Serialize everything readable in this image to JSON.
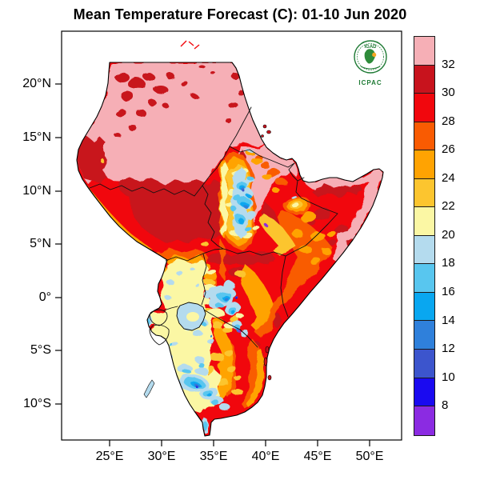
{
  "title": "Mean Temperature Forecast (C): 01-10 Jun 2020",
  "logo": {
    "org": "IGAD",
    "caption": "ICPAC"
  },
  "axes": {
    "lat": [
      "20°N",
      "15°N",
      "10°N",
      "5°N",
      "0°",
      "5°S",
      "10°S"
    ],
    "lon": [
      "25°E",
      "30°E",
      "35°E",
      "40°E",
      "45°E",
      "50°E"
    ]
  },
  "legend": {
    "labels": [
      "32",
      "30",
      "28",
      "26",
      "24",
      "22",
      "20",
      "18",
      "16",
      "14",
      "12",
      "10",
      "8"
    ],
    "colors": [
      "#F6AFB6",
      "#C8131D",
      "#F1070D",
      "#F95B02",
      "#FFA302",
      "#FCC52F",
      "#FBF7A4",
      "#B4DBEE",
      "#58C6EF",
      "#09A7F0",
      "#2F80DB",
      "#3C55CD",
      "#1A0AF0",
      "#8B2BE2"
    ],
    "units": "C"
  }
}
